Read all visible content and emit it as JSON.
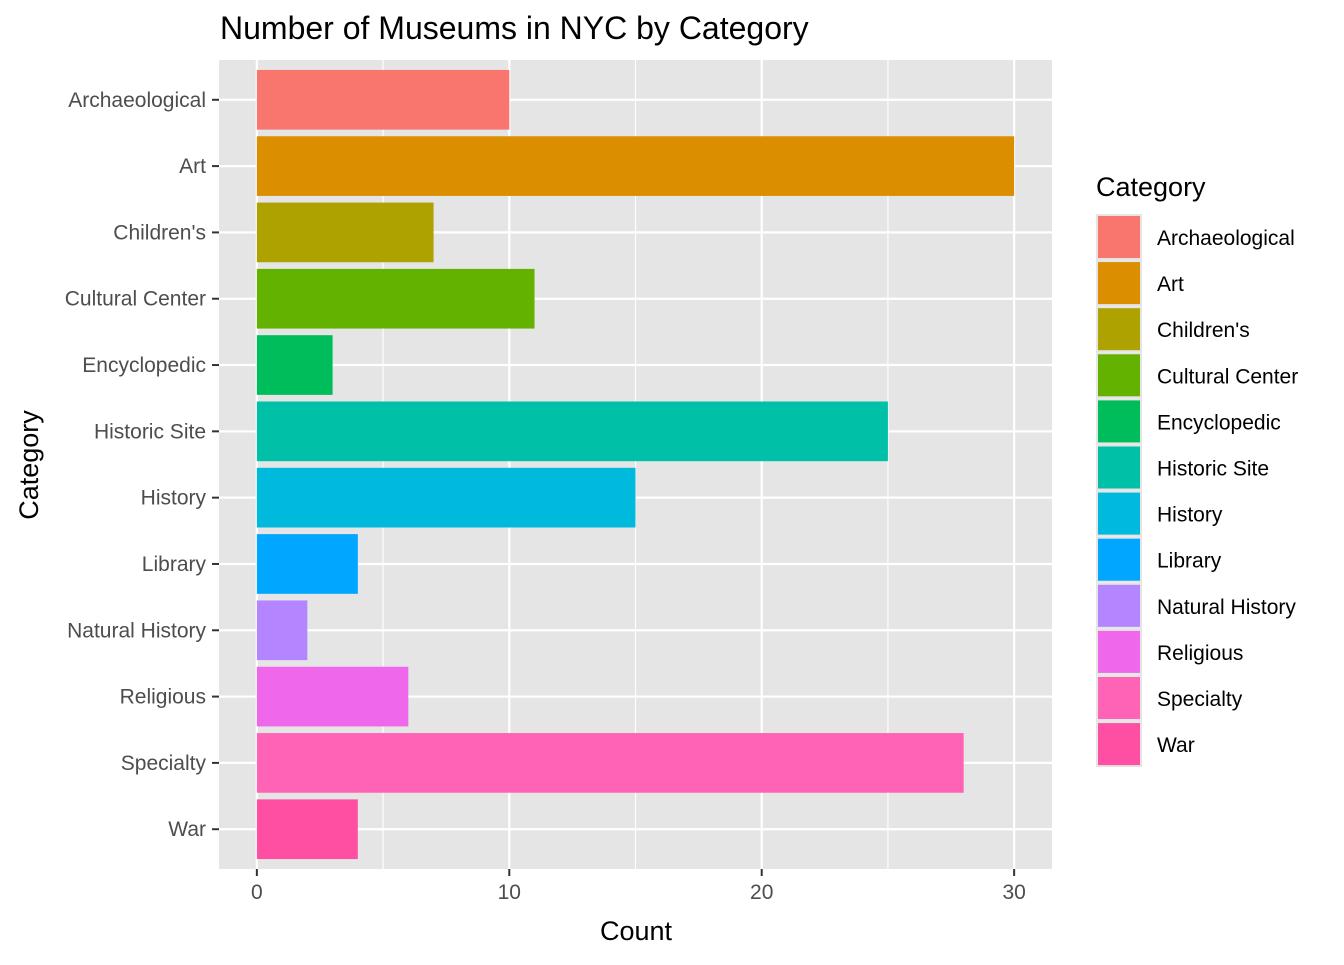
{
  "chart_data": {
    "type": "bar",
    "orientation": "horizontal",
    "title": "Number of Museums in NYC by Category",
    "xlabel": "Count",
    "ylabel": "Category",
    "categories": [
      "Archaeological",
      "Art",
      "Children's",
      "Cultural Center",
      "Encyclopedic",
      "Historic Site",
      "History",
      "Library",
      "Natural History",
      "Religious",
      "Specialty",
      "War"
    ],
    "values": [
      10,
      30,
      7,
      11,
      3,
      25,
      15,
      4,
      2,
      6,
      28,
      4
    ],
    "colors": [
      "#F8766D",
      "#DB8E00",
      "#AEA200",
      "#64B200",
      "#00BD5C",
      "#00C1A7",
      "#00BADE",
      "#00A6FF",
      "#B385FF",
      "#EF67EB",
      "#FF63B6",
      "#FF4FA2"
    ],
    "xlim": [
      -1.5,
      31.5
    ],
    "xticks": [
      0,
      10,
      20,
      30
    ],
    "grid": true,
    "legend": {
      "title": "Category",
      "position": "right",
      "entries": [
        "Archaeological",
        "Art",
        "Children's",
        "Cultural Center",
        "Encyclopedic",
        "Historic Site",
        "History",
        "Library",
        "Natural History",
        "Religious",
        "Specialty",
        "War"
      ]
    }
  },
  "style": {
    "panel_bg": "#E5E5E5",
    "grid_color": "#FFFFFF"
  }
}
